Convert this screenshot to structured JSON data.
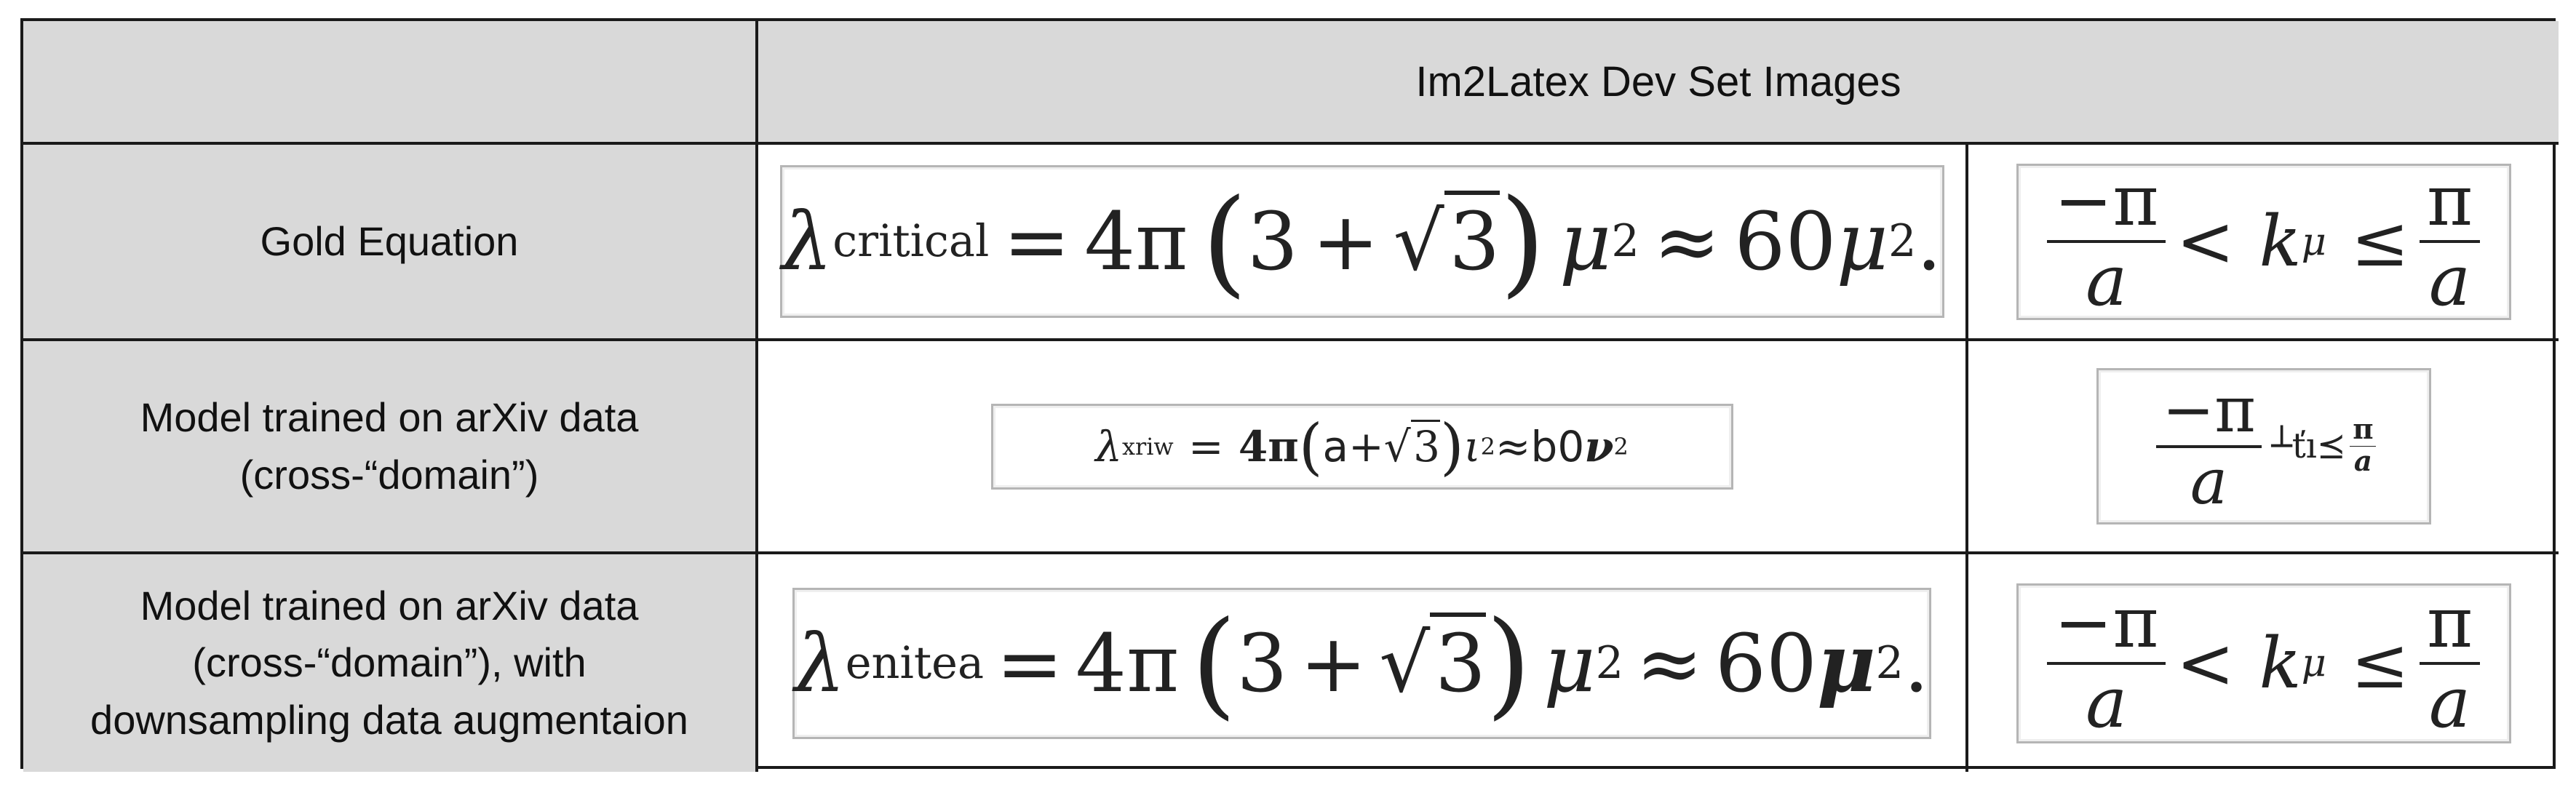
{
  "table": {
    "header": "Im2Latex Dev Set Images",
    "rows": [
      {
        "label": "Gold Equation"
      },
      {
        "label": "Model trained on arXiv data\n(cross-“domain”)"
      },
      {
        "label": "Model trained on arXiv data\n(cross-“domain”), with\ndownsampling data augmentaion"
      }
    ]
  },
  "equations": {
    "gold_1": {
      "lambda": "λ",
      "subscript": "critical",
      "eq": "=",
      "four_pi": "4π",
      "lparen": "(",
      "three": "3",
      "plus": "+",
      "root": "√",
      "radicand": "3",
      "rparen": ")",
      "mu": "μ",
      "sq": "2",
      "approx": "≈",
      "sixty": "60",
      "mu2": "μ",
      "sq2": "2",
      "dot": "."
    },
    "gold_2": {
      "num_left": "−π",
      "den_left": "a",
      "lt": "<",
      "k": "k",
      "ksub": "μ",
      "leq": "≤",
      "num_right": "π",
      "den_right": "a"
    },
    "arxiv_1": {
      "lambda": "λ",
      "subscript": "xriw",
      "eq": "=",
      "four_pi": "4π",
      "lparen": "(",
      "a": "a",
      "plus": "+",
      "root": "√",
      "radicand": "3",
      "rparen": ")",
      "iota": "ι",
      "sq": "2",
      "approx": "≈",
      "b0": "b0",
      "nu": "ν",
      "sq2": "2"
    },
    "arxiv_2": {
      "num_left": "−π",
      "den_left": "a",
      "rest": "┴ťı⪯",
      "num_right": "π",
      "den_right": "a"
    },
    "aug_1": {
      "lambda": "λ",
      "subscript": "enitea",
      "eq": "=",
      "four_pi": "4π",
      "lparen": "(",
      "three": "3",
      "plus": "+",
      "root": "√",
      "radicand": "3",
      "rparen": ")",
      "mu": "μ",
      "sq": "2",
      "approx": "≈",
      "sixty": "60",
      "mu2": "μ",
      "sq2": "2",
      "dot": "."
    },
    "aug_2": {
      "num_left": "−π",
      "den_left": "a",
      "lt": "<",
      "k": "k",
      "ksub": "μ",
      "leq": "≤",
      "num_right": "π",
      "den_right": "a"
    }
  }
}
